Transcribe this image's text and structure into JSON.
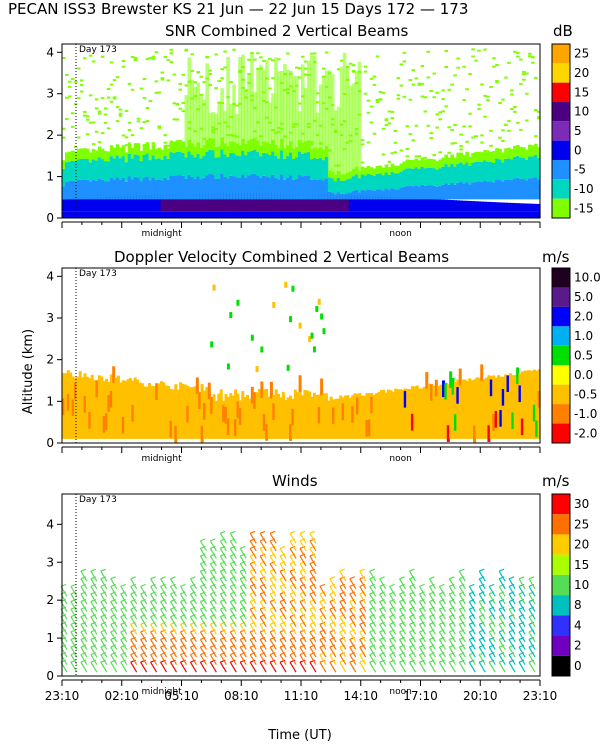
{
  "title": "PECAN ISS3 Brewster KS  21 Jun — 22 Jun 15 Days 172 — 173",
  "ylabel": "Altitude (km)",
  "xlabel": "Time (UT)",
  "day_marker": "Day 173",
  "midnight_label": "midnight",
  "noon_label": "noon",
  "chart_data": [
    {
      "type": "heatmap",
      "title": "SNR Combined 2 Vertical Beams",
      "unit": "dB",
      "ylim": [
        0,
        4.2
      ],
      "yticks": [
        "0",
        "1",
        "2",
        "3",
        "4"
      ],
      "colorbar": {
        "labels": [
          "25",
          "20",
          "15",
          "10",
          "5",
          "0",
          "-5",
          "-10",
          "-15"
        ],
        "colors": [
          "#ffa500",
          "#ffd700",
          "#ff0000",
          "#4b0082",
          "#7b2bb8",
          "#0000ee",
          "#1e90ff",
          "#00d7c0",
          "#7fff00"
        ]
      }
    },
    {
      "type": "heatmap",
      "title": "Doppler Velocity Combined 2 Vertical Beams",
      "unit": "m/s",
      "ylim": [
        0,
        4.2
      ],
      "yticks": [
        "0",
        "1",
        "2",
        "3",
        "4"
      ],
      "colorbar": {
        "labels": [
          "10.0",
          "5.0",
          "2.0",
          "1.0",
          "0.5",
          "0.0",
          "-0.5",
          "-1.0",
          "-2.0"
        ],
        "colors": [
          "#200020",
          "#5a1a8c",
          "#0000ff",
          "#00b0f0",
          "#00e000",
          "#ffff00",
          "#ffc000",
          "#ff8000",
          "#ff0000"
        ]
      }
    },
    {
      "type": "barbs",
      "title": "Winds",
      "unit": "m/s",
      "ylim": [
        0,
        4.8
      ],
      "yticks": [
        "0",
        "1",
        "2",
        "3",
        "4"
      ],
      "xticks": [
        "23:10",
        "02:10",
        "05:10",
        "08:10",
        "11:10",
        "14:10",
        "17:10",
        "20:10",
        "23:10"
      ],
      "colorbar": {
        "labels": [
          "30",
          "25",
          "20",
          "15",
          "10",
          "8",
          "4",
          "2",
          "0"
        ],
        "colors": [
          "#ff0000",
          "#ff7000",
          "#ffcc00",
          "#aaff00",
          "#55dd55",
          "#00bfbf",
          "#3030ff",
          "#7000c0",
          "#000000"
        ]
      }
    }
  ]
}
